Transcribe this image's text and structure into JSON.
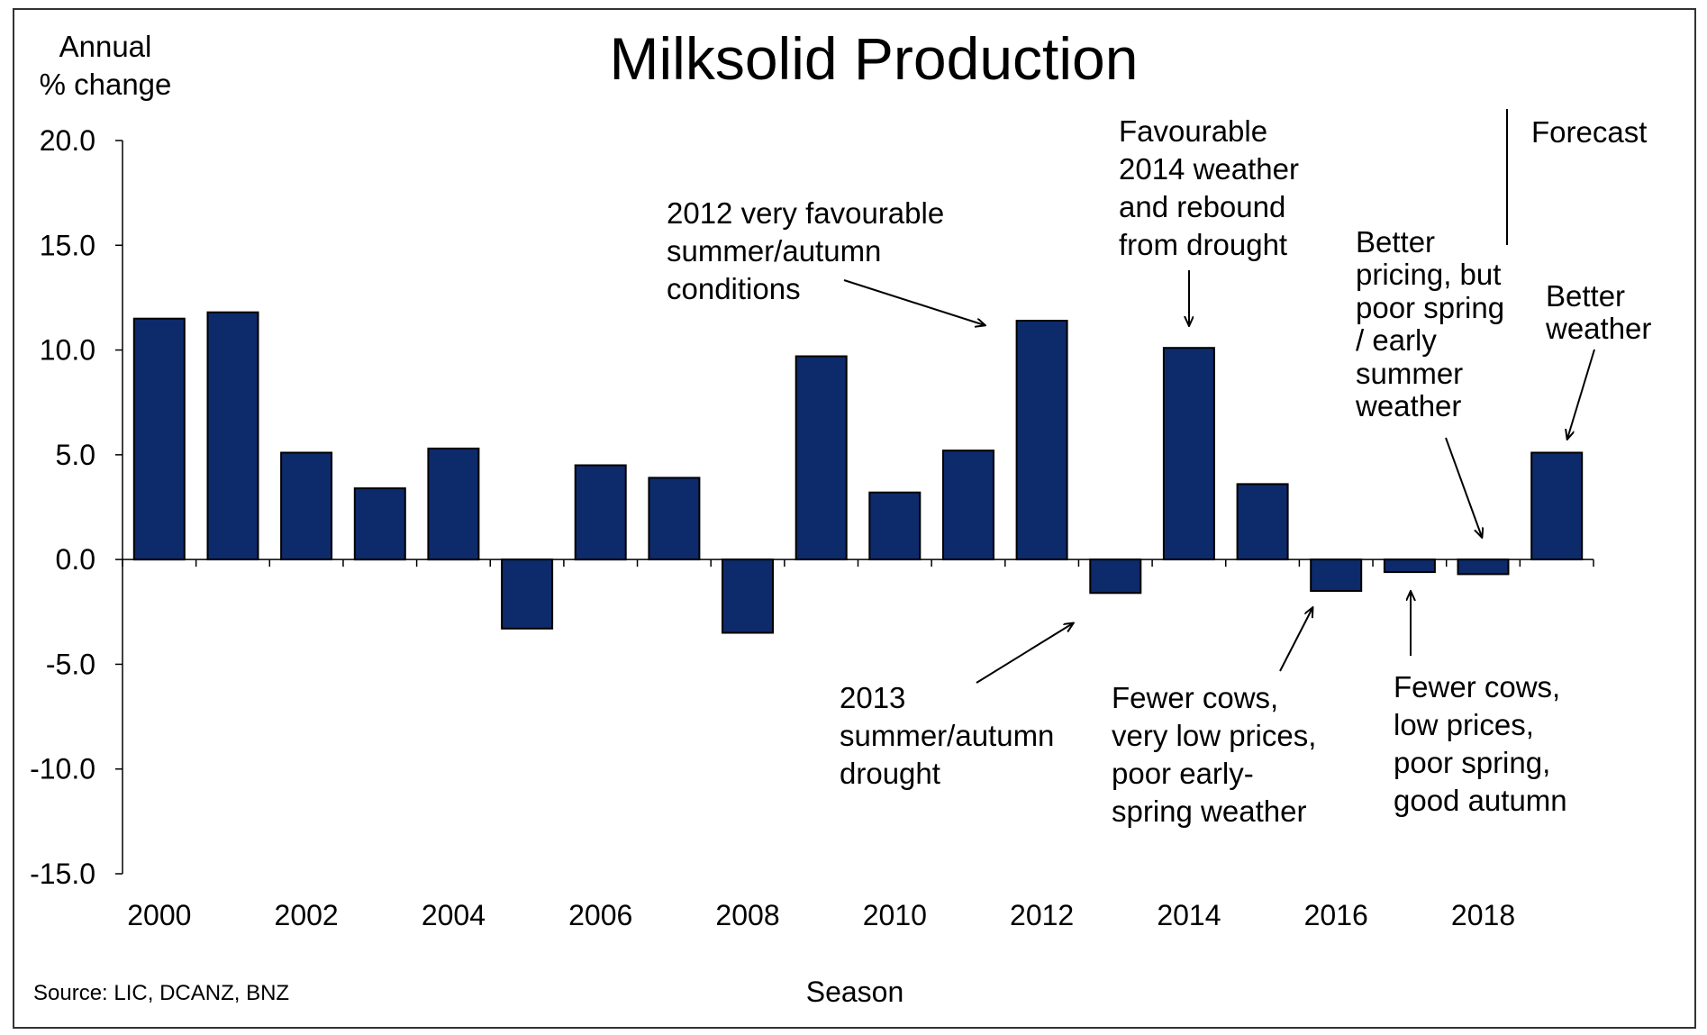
{
  "chart_data": {
    "type": "bar",
    "title": "Milksolid Production",
    "ylabel": [
      "Annual",
      "% change"
    ],
    "xlabel": "Season",
    "source": "Source: LIC, DCANZ, BNZ",
    "forecast_label": "Forecast",
    "ylim": [
      -15,
      20
    ],
    "ytick_labels": [
      "20.0",
      "15.0",
      "10.0",
      "5.0",
      "0.0",
      "-5.0",
      "-10.0",
      "-15.0"
    ],
    "ytick_values": [
      20,
      15,
      10,
      5,
      0,
      -5,
      -10,
      -15
    ],
    "categories": [
      "2000",
      "2001",
      "2002",
      "2003",
      "2004",
      "2005",
      "2006",
      "2007",
      "2008",
      "2009",
      "2010",
      "2011",
      "2012",
      "2013",
      "2014",
      "2015",
      "2016",
      "2017",
      "2018",
      "2019"
    ],
    "xtick_labels": [
      "2000",
      "2002",
      "2004",
      "2006",
      "2008",
      "2010",
      "2012",
      "2014",
      "2016",
      "2018"
    ],
    "values": [
      11.5,
      11.8,
      5.1,
      3.4,
      5.3,
      -3.3,
      4.5,
      3.9,
      -3.5,
      9.7,
      3.2,
      5.2,
      11.4,
      -1.6,
      10.1,
      3.6,
      -1.5,
      -0.6,
      -0.7,
      5.1
    ],
    "bar_color": "#0d2a6b",
    "grid": false,
    "legend": "none",
    "annotations": [
      {
        "lines": [
          "2012 very  favourable",
          "summer/autumn",
          "conditions"
        ]
      },
      {
        "lines": [
          "Favourable",
          "2014 weather",
          "and rebound",
          "from drought"
        ]
      },
      {
        "lines": [
          "Better",
          "pricing, but",
          "poor spring",
          "/ early",
          "summer",
          "weather"
        ]
      },
      {
        "lines": [
          "Better",
          "weather"
        ]
      },
      {
        "lines": [
          "2013",
          "summer/autumn",
          "drought"
        ]
      },
      {
        "lines": [
          "Fewer cows,",
          "very  low prices,",
          "poor early-",
          "spring weather"
        ]
      },
      {
        "lines": [
          "Fewer cows,",
          "low prices,",
          "poor spring,",
          "good autumn"
        ]
      }
    ]
  }
}
